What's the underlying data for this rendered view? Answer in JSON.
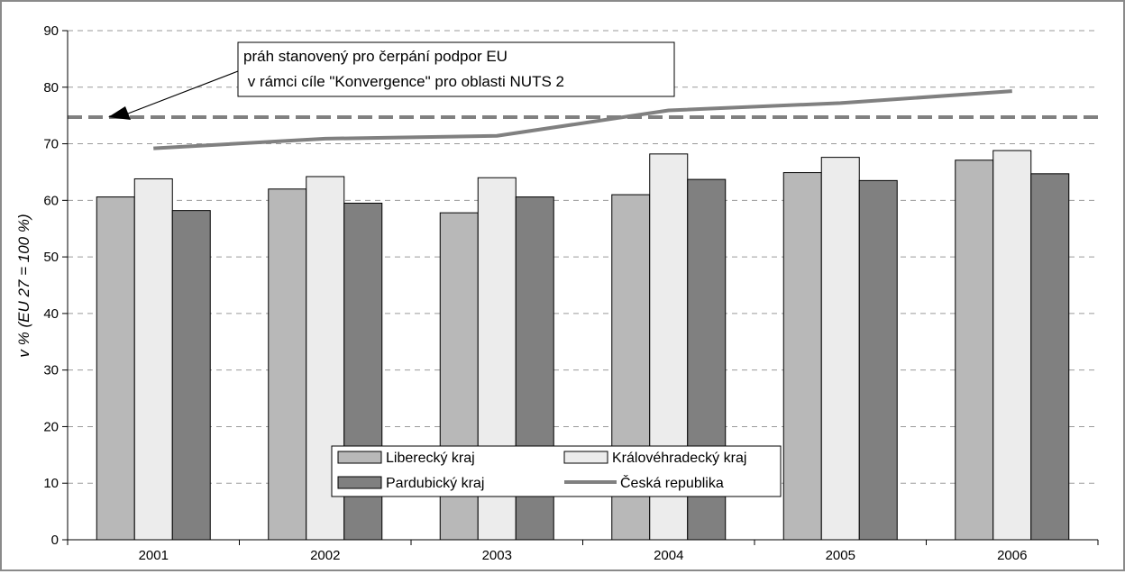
{
  "chart_data": {
    "type": "bar",
    "categories": [
      "2001",
      "2002",
      "2003",
      "2004",
      "2005",
      "2006"
    ],
    "series": [
      {
        "name": "Liberecký kraj",
        "type": "bar",
        "color": "#b8b8b8",
        "values": [
          60.6,
          62.0,
          57.8,
          61.0,
          64.9,
          67.1
        ]
      },
      {
        "name": "Královéhradecký kraj",
        "type": "bar",
        "color": "#ececec",
        "values": [
          63.8,
          64.2,
          64.0,
          68.2,
          67.6,
          68.8
        ]
      },
      {
        "name": "Pardubický kraj",
        "type": "bar",
        "color": "#808080",
        "values": [
          58.2,
          59.5,
          60.6,
          63.7,
          63.5,
          64.7
        ]
      },
      {
        "name": "Česká republika",
        "type": "line",
        "color": "#808080",
        "values": [
          69.2,
          70.9,
          71.4,
          75.9,
          77.2,
          79.3
        ]
      }
    ],
    "threshold": {
      "value": 74.7,
      "color": "#808080"
    },
    "annotation": {
      "lines": [
        "práh stanovený pro čerpání podpor EU",
        " v rámci cíle \"Konvergence\" pro oblasti NUTS 2"
      ]
    },
    "ylabel": "v % (EU 27 = 100 %)",
    "xlabel": "",
    "ylim": [
      0,
      90
    ],
    "yticks": [
      0,
      10,
      20,
      30,
      40,
      50,
      60,
      70,
      80,
      90
    ],
    "grid": true,
    "legend_position": "bottom-center"
  }
}
